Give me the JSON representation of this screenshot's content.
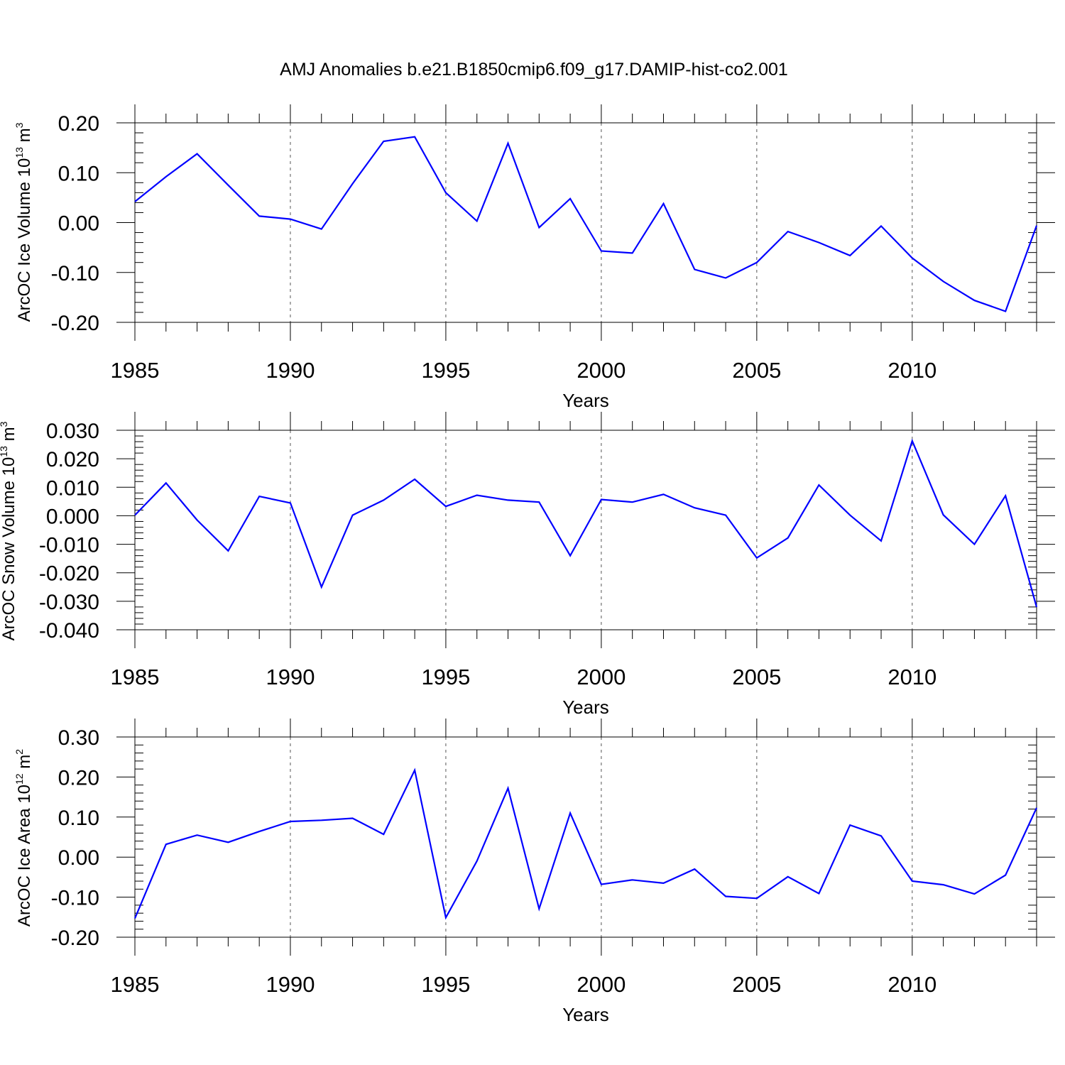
{
  "title": "AMJ Anomalies b.e21.B1850cmip6.f09_g17.DAMIP-hist-co2.001",
  "colors": {
    "line": "#0000ff",
    "axis": "#000000",
    "grid": "#555555"
  },
  "chart_data": [
    {
      "type": "line",
      "xlabel": "Years",
      "ylabel": {
        "text": "ArcOC Ice Volume 10",
        "exp": "13",
        "unit": " m",
        "unit_exp": "3"
      },
      "xlim": [
        1985,
        2014
      ],
      "ylim": [
        -0.2,
        0.2
      ],
      "yticks": [
        "0.20",
        "0.10",
        "0.00",
        "-0.10",
        "-0.20"
      ],
      "ytick_values": [
        0.2,
        0.1,
        0.0,
        -0.1,
        -0.2
      ],
      "xticks": [
        "1985",
        "1990",
        "1995",
        "2000",
        "2005",
        "2010"
      ],
      "xtick_values": [
        1985,
        1990,
        1995,
        2000,
        2005,
        2010
      ],
      "grid": "vertical dashed at 1990, 1995, 2000, 2005, 2010",
      "x": [
        1985,
        1986,
        1987,
        1988,
        1989,
        1990,
        1991,
        1992,
        1993,
        1994,
        1995,
        1996,
        1997,
        1998,
        1999,
        2000,
        2001,
        2002,
        2003,
        2004,
        2005,
        2006,
        2007,
        2008,
        2009,
        2010,
        2011,
        2012,
        2013,
        2014
      ],
      "values": [
        0.042,
        0.092,
        0.138,
        0.075,
        0.013,
        0.007,
        -0.013,
        0.078,
        0.163,
        0.172,
        0.06,
        0.003,
        0.159,
        -0.01,
        0.048,
        -0.057,
        -0.061,
        0.038,
        -0.094,
        -0.111,
        -0.08,
        -0.018,
        -0.04,
        -0.066,
        -0.007,
        -0.071,
        -0.118,
        -0.156,
        -0.178,
        -0.006
      ]
    },
    {
      "type": "line",
      "xlabel": "Years",
      "ylabel": {
        "text": "ArcOC Snow Volume 10",
        "exp": "13",
        "unit": " m",
        "unit_exp": "3"
      },
      "xlim": [
        1985,
        2014
      ],
      "ylim": [
        -0.04,
        0.03
      ],
      "yticks": [
        "0.030",
        "0.020",
        "0.010",
        "0.000",
        "-0.010",
        "-0.020",
        "-0.030",
        "-0.040"
      ],
      "ytick_values": [
        0.03,
        0.02,
        0.01,
        0.0,
        -0.01,
        -0.02,
        -0.03,
        -0.04
      ],
      "xticks": [
        "1985",
        "1990",
        "1995",
        "2000",
        "2005",
        "2010"
      ],
      "xtick_values": [
        1985,
        1990,
        1995,
        2000,
        2005,
        2010
      ],
      "grid": "vertical dashed at 1990, 1995, 2000, 2005, 2010",
      "x": [
        1985,
        1986,
        1987,
        1988,
        1989,
        1990,
        1991,
        1992,
        1993,
        1994,
        1995,
        1996,
        1997,
        1998,
        1999,
        2000,
        2001,
        2002,
        2003,
        2004,
        2005,
        2006,
        2007,
        2008,
        2009,
        2010,
        2011,
        2012,
        2013,
        2014
      ],
      "values": [
        0.0002,
        0.0115,
        -0.0015,
        -0.0123,
        0.0068,
        0.0045,
        -0.025,
        0.0002,
        0.0055,
        0.0128,
        0.0033,
        0.0072,
        0.0055,
        0.0048,
        -0.014,
        0.0057,
        0.0048,
        0.0075,
        0.0028,
        0.0002,
        -0.0148,
        -0.0078,
        0.0108,
        0.0002,
        -0.0088,
        0.0263,
        0.0003,
        -0.01,
        0.007,
        -0.032
      ]
    },
    {
      "type": "line",
      "xlabel": "Years",
      "ylabel": {
        "text": "ArcOC Ice Area 10",
        "exp": "12",
        "unit": " m",
        "unit_exp": "2"
      },
      "xlim": [
        1985,
        2014
      ],
      "ylim": [
        -0.2,
        0.3
      ],
      "yticks": [
        "0.30",
        "0.20",
        "0.10",
        "0.00",
        "-0.10",
        "-0.20"
      ],
      "ytick_values": [
        0.3,
        0.2,
        0.1,
        0.0,
        -0.1,
        -0.2
      ],
      "xticks": [
        "1985",
        "1990",
        "1995",
        "2000",
        "2005",
        "2010"
      ],
      "xtick_values": [
        1985,
        1990,
        1995,
        2000,
        2005,
        2010
      ],
      "grid": "vertical dashed at 1990, 1995, 2000, 2005, 2010",
      "x": [
        1985,
        1986,
        1987,
        1988,
        1989,
        1990,
        1991,
        1992,
        1993,
        1994,
        1995,
        1996,
        1997,
        1998,
        1999,
        2000,
        2001,
        2002,
        2003,
        2004,
        2005,
        2006,
        2007,
        2008,
        2009,
        2010,
        2011,
        2012,
        2013,
        2014
      ],
      "values": [
        -0.153,
        0.032,
        0.055,
        0.037,
        0.064,
        0.089,
        0.092,
        0.097,
        0.057,
        0.217,
        -0.151,
        -0.01,
        0.172,
        -0.129,
        0.11,
        -0.068,
        -0.057,
        -0.065,
        -0.03,
        -0.098,
        -0.103,
        -0.049,
        -0.091,
        0.08,
        0.053,
        -0.06,
        -0.069,
        -0.092,
        -0.045,
        0.123
      ]
    }
  ]
}
